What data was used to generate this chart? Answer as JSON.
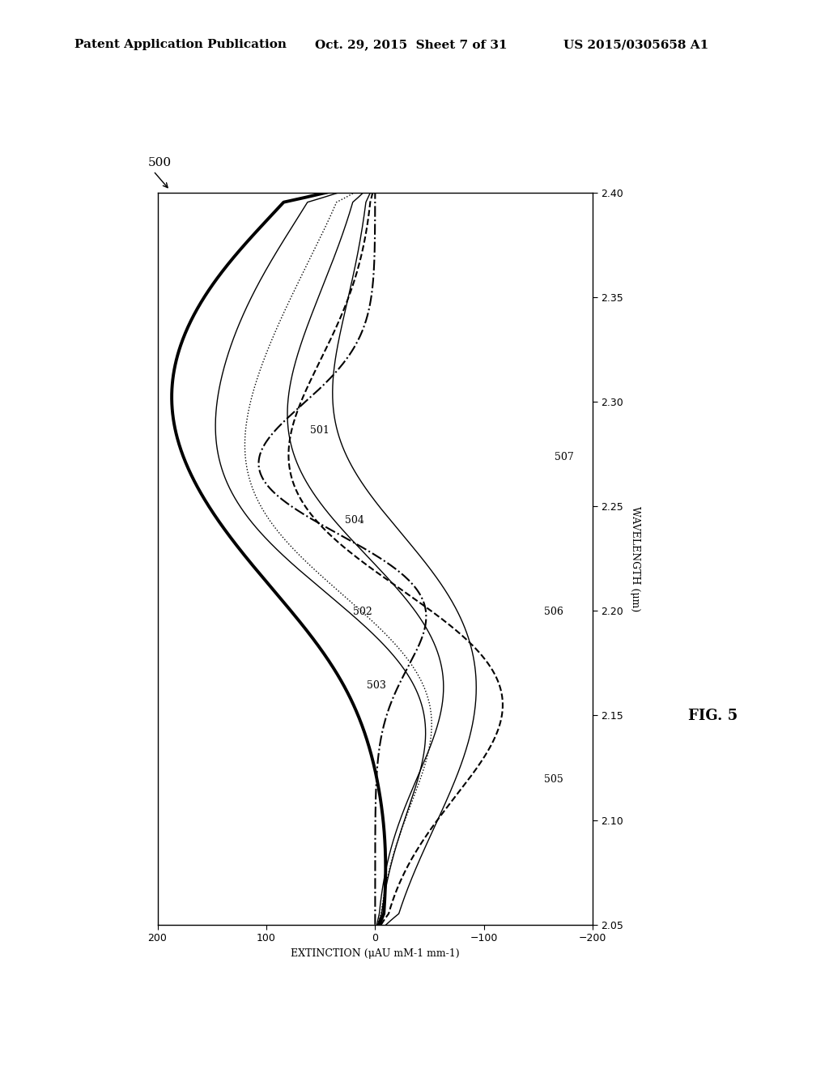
{
  "header_left": "Patent Application Publication",
  "header_mid": "Oct. 29, 2015  Sheet 7 of 31",
  "header_right": "US 2015/0305658 A1",
  "fig_label": "FIG. 5",
  "xlabel": "EXTINCTION (μAU mM-1 mm-1)",
  "ylabel": "WAVELENGTH (μm)",
  "xlim": [
    -200,
    200
  ],
  "ylim": [
    2.05,
    2.4
  ],
  "xticks": [
    -200,
    -100,
    0,
    100,
    200
  ],
  "yticks": [
    2.05,
    2.1,
    2.15,
    2.2,
    2.25,
    2.3,
    2.35,
    2.4
  ],
  "figure_label": "500",
  "curve_labels": [
    "501",
    "502",
    "503",
    "504",
    "505",
    "506",
    "507"
  ],
  "background_color": "#ffffff"
}
